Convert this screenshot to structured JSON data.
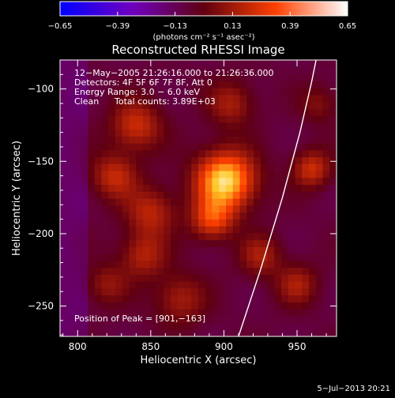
{
  "chart_data": {
    "type": "heatmap",
    "title": "Reconstructed RHESSI Image",
    "xlabel": "Heliocentric X (arcsec)",
    "ylabel": "Heliocentric Y (arcsec)",
    "xlim": [
      788,
      977
    ],
    "ylim": [
      -271,
      -80
    ],
    "x_ticks": [
      800,
      850,
      900,
      950
    ],
    "y_ticks": [
      -100,
      -150,
      -200,
      -250
    ],
    "x_tick_labels": [
      "800",
      "850",
      "900",
      "950"
    ],
    "y_tick_labels": [
      "−100",
      "−150",
      "−200",
      "−250"
    ],
    "colorbar": {
      "min": -0.65,
      "max": 0.65,
      "ticks": [
        -0.65,
        -0.39,
        -0.13,
        0.13,
        0.39,
        0.65
      ],
      "tick_labels": [
        "−0.65",
        "−0.39",
        "−0.13",
        "0.13",
        "0.39",
        "0.65"
      ],
      "units_label": "(photons cm⁻² s⁻¹ asec⁻²)"
    },
    "annotations": {
      "time_range": "12−May−2005 21:26:16.000 to 21:26:36.000",
      "detectors": "Detectors: 4F 5F 6F 7F 8F, Att 0",
      "energy_range": "Energy Range: 3.0 − 6.0 keV",
      "method": "Clean",
      "total_counts": "Total counts: 3.89E+03",
      "peak": "Position of Peak = [901,−163]"
    },
    "peak": [
      901,
      -163
    ],
    "limb_curve": [
      [
        910,
        -271
      ],
      [
        925,
        -225
      ],
      [
        940,
        -175
      ],
      [
        952,
        -130
      ],
      [
        960,
        -95
      ],
      [
        963,
        -80
      ]
    ],
    "sources": [
      {
        "x": 901,
        "y": -163,
        "amp": 0.65,
        "sigma": 14
      },
      {
        "x": 892,
        "y": -190,
        "amp": 0.35,
        "sigma": 10
      },
      {
        "x": 840,
        "y": -125,
        "amp": 0.3,
        "sigma": 12
      },
      {
        "x": 825,
        "y": -160,
        "amp": 0.28,
        "sigma": 11
      },
      {
        "x": 850,
        "y": -185,
        "amp": 0.26,
        "sigma": 12
      },
      {
        "x": 845,
        "y": -215,
        "amp": 0.24,
        "sigma": 11
      },
      {
        "x": 870,
        "y": -245,
        "amp": 0.22,
        "sigma": 12
      },
      {
        "x": 905,
        "y": -110,
        "amp": 0.22,
        "sigma": 11
      },
      {
        "x": 925,
        "y": -215,
        "amp": 0.22,
        "sigma": 10
      },
      {
        "x": 960,
        "y": -155,
        "amp": 0.3,
        "sigma": 9
      },
      {
        "x": 950,
        "y": -235,
        "amp": 0.22,
        "sigma": 10
      },
      {
        "x": 820,
        "y": -235,
        "amp": 0.18,
        "sigma": 10
      },
      {
        "x": 965,
        "y": -110,
        "amp": 0.15,
        "sigma": 9
      }
    ]
  },
  "footer": {
    "timestamp": "5−Jul−2013 20:21"
  }
}
